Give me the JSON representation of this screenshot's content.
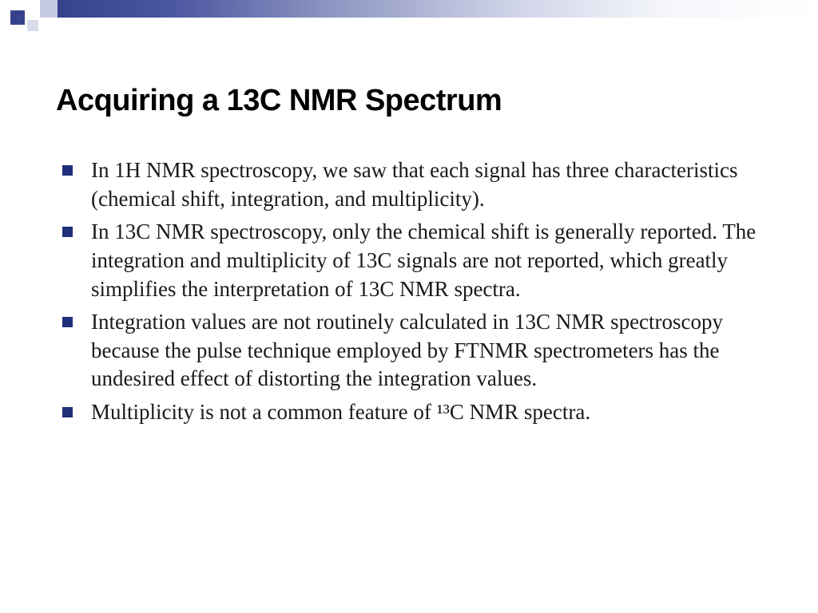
{
  "slide": {
    "title": "Acquiring a 13C NMR Spectrum",
    "bullets": [
      "In 1H NMR spectroscopy, we saw that each signal has three characteristics (chemical shift, integration, and multiplicity).",
      "In 13C NMR spectroscopy, only the chemical shift is generally reported. The integration and multiplicity of 13C signals are not reported, which greatly simplifies the interpretation of 13C NMR spectra.",
      "Integration values are not routinely calculated in 13C NMR spectroscopy because the pulse technique employed by FTNMR spectrometers has the undesired effect of distorting the integration values.",
      "Multiplicity is not a common feature of ¹³C NMR spectra."
    ]
  },
  "theme": {
    "accent_color": "#36428b",
    "bullet_color": "#1f2f7a",
    "background": "#ffffff",
    "title_font": "Arial",
    "body_font": "Times New Roman",
    "title_fontsize": 38,
    "body_fontsize": 27
  }
}
